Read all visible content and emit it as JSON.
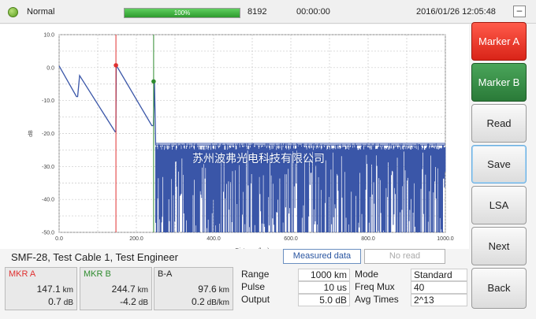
{
  "status": {
    "state_text": "Normal",
    "progress_text": "100%",
    "progress": 1.0,
    "count": "8192",
    "elapsed": "00:00:00",
    "datetime": "2016/01/26 12:05:48",
    "minimize_label": "–"
  },
  "chart_data": {
    "type": "line",
    "ylabel": "dB",
    "xlabel": "Distance (km)",
    "xlim": [
      0,
      1000
    ],
    "ylim": [
      -50,
      10
    ],
    "x_ticks": [
      "0.0",
      "200.0",
      "400.0",
      "600.0",
      "800.0",
      "1000.0"
    ],
    "y_ticks": [
      "10.0",
      "0.0",
      "-10.0",
      "-20.0",
      "-30.0",
      "-40.0",
      "-50.0"
    ],
    "grid": true,
    "series": [
      {
        "color": "#3a56a8",
        "x": [
          0,
          45,
          48,
          53,
          145,
          147,
          148,
          240,
          244,
          247,
          250,
          1000
        ],
        "y": [
          0.5,
          -8.8,
          -8.8,
          -2.4,
          -19.5,
          -19.5,
          0.7,
          -17.6,
          -17.6,
          -4.5,
          -23.5,
          -23.5
        ],
        "noise_floor": {
          "x_start": 250,
          "x_end": 1000,
          "y_top": -23.0,
          "y_bottom": -50.0
        }
      }
    ],
    "markers": [
      {
        "name": "Marker A",
        "x": 147.1,
        "y": 0.7,
        "color": "#e03030"
      },
      {
        "name": "Marker B",
        "x": 244.7,
        "y": -4.2,
        "color": "#2e8b2e"
      }
    ],
    "watermark": "苏州波弗光电科技有限公司"
  },
  "trace_name": "SMF-28, Test Cable 1, Test Engineer",
  "measured_label": "Measured data",
  "noread_label": "No read",
  "mkr_a": {
    "title": "MKR A",
    "distance": "147.1",
    "distance_unit": "km",
    "loss": "0.7",
    "loss_unit": "dB"
  },
  "mkr_b": {
    "title": "MKR B",
    "distance": "244.7",
    "distance_unit": "km",
    "loss": "-4.2",
    "loss_unit": "dB"
  },
  "b_a": {
    "title": "B-A",
    "distance": "97.6",
    "distance_unit": "km",
    "loss": "0.2",
    "loss_unit": "dB/km"
  },
  "settings": {
    "range_label": "Range",
    "range_value": "1000 km",
    "pulse_label": "Pulse",
    "pulse_value": "10 us",
    "output_label": "Output",
    "output_value": "5.0 dB",
    "mode_label": "Mode",
    "mode_value": "Standard",
    "freq_label": "Freq Mux",
    "freq_value": "40",
    "avg_label": "Avg Times",
    "avg_value": "2^13"
  },
  "buttons": {
    "marker_a": "Marker A",
    "marker_b": "Marker B",
    "read": "Read",
    "save": "Save",
    "lsa": "LSA",
    "next": "Next",
    "back": "Back"
  }
}
